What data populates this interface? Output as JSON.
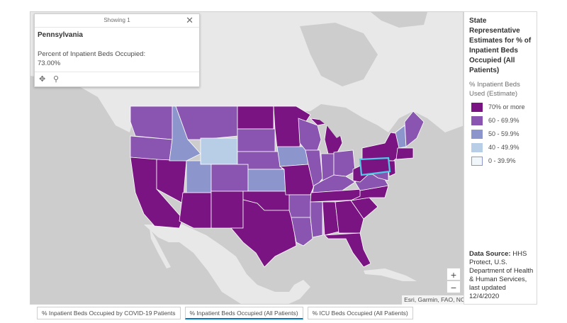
{
  "colors": {
    "ocean": "#cdcdcd",
    "land": "#e8e8e8",
    "bin_70_plus": "#7a1482",
    "bin_60_69": "#8a55b0",
    "bin_50_59": "#8c95cc",
    "bin_40_49": "#b7cee6",
    "bin_0_39": "#f2f7fb",
    "highlight": "#4ec9e6"
  },
  "popup": {
    "header": "Showing 1",
    "state": "Pennsylvania",
    "field_label": "Percent of Inpatient Beds Occupied:",
    "field_value": "73.00%",
    "close_icon": "close-icon",
    "pan_icon": "pan-icon",
    "zoom_icon": "zoom-to-icon"
  },
  "legend": {
    "title": "State Representative Estimates for % of Inpatient Beds Occupied (All Patients)",
    "subtitle": "% Inpatient Beds Used (Estimate)",
    "bins": [
      {
        "label": "70% or more",
        "color": "#7a1482"
      },
      {
        "label": "60 - 69.9%",
        "color": "#8a55b0"
      },
      {
        "label": "50 - 59.9%",
        "color": "#8c95cc"
      },
      {
        "label": "40 - 49.9%",
        "color": "#b7cee6"
      },
      {
        "label": "0 - 39.9%",
        "color": "#f2f7fb"
      }
    ],
    "source_label": "Data Source:",
    "source_text": "HHS Protect, U.S. Department of Health & Human Services, last updated 12/4/2020"
  },
  "zoom": {
    "in_label": "+",
    "out_label": "−"
  },
  "attribution": "Esri, Garmin, FAO, NOAA, EPA",
  "tabs": [
    {
      "label": "% Inpatient Beds Occupied by COVID-19 Patients",
      "active": false
    },
    {
      "label": "% Inpatient Beds Occupied (All Patients)",
      "active": true
    },
    {
      "label": "% ICU Beds Occupied (All Patients)",
      "active": false
    }
  ]
}
